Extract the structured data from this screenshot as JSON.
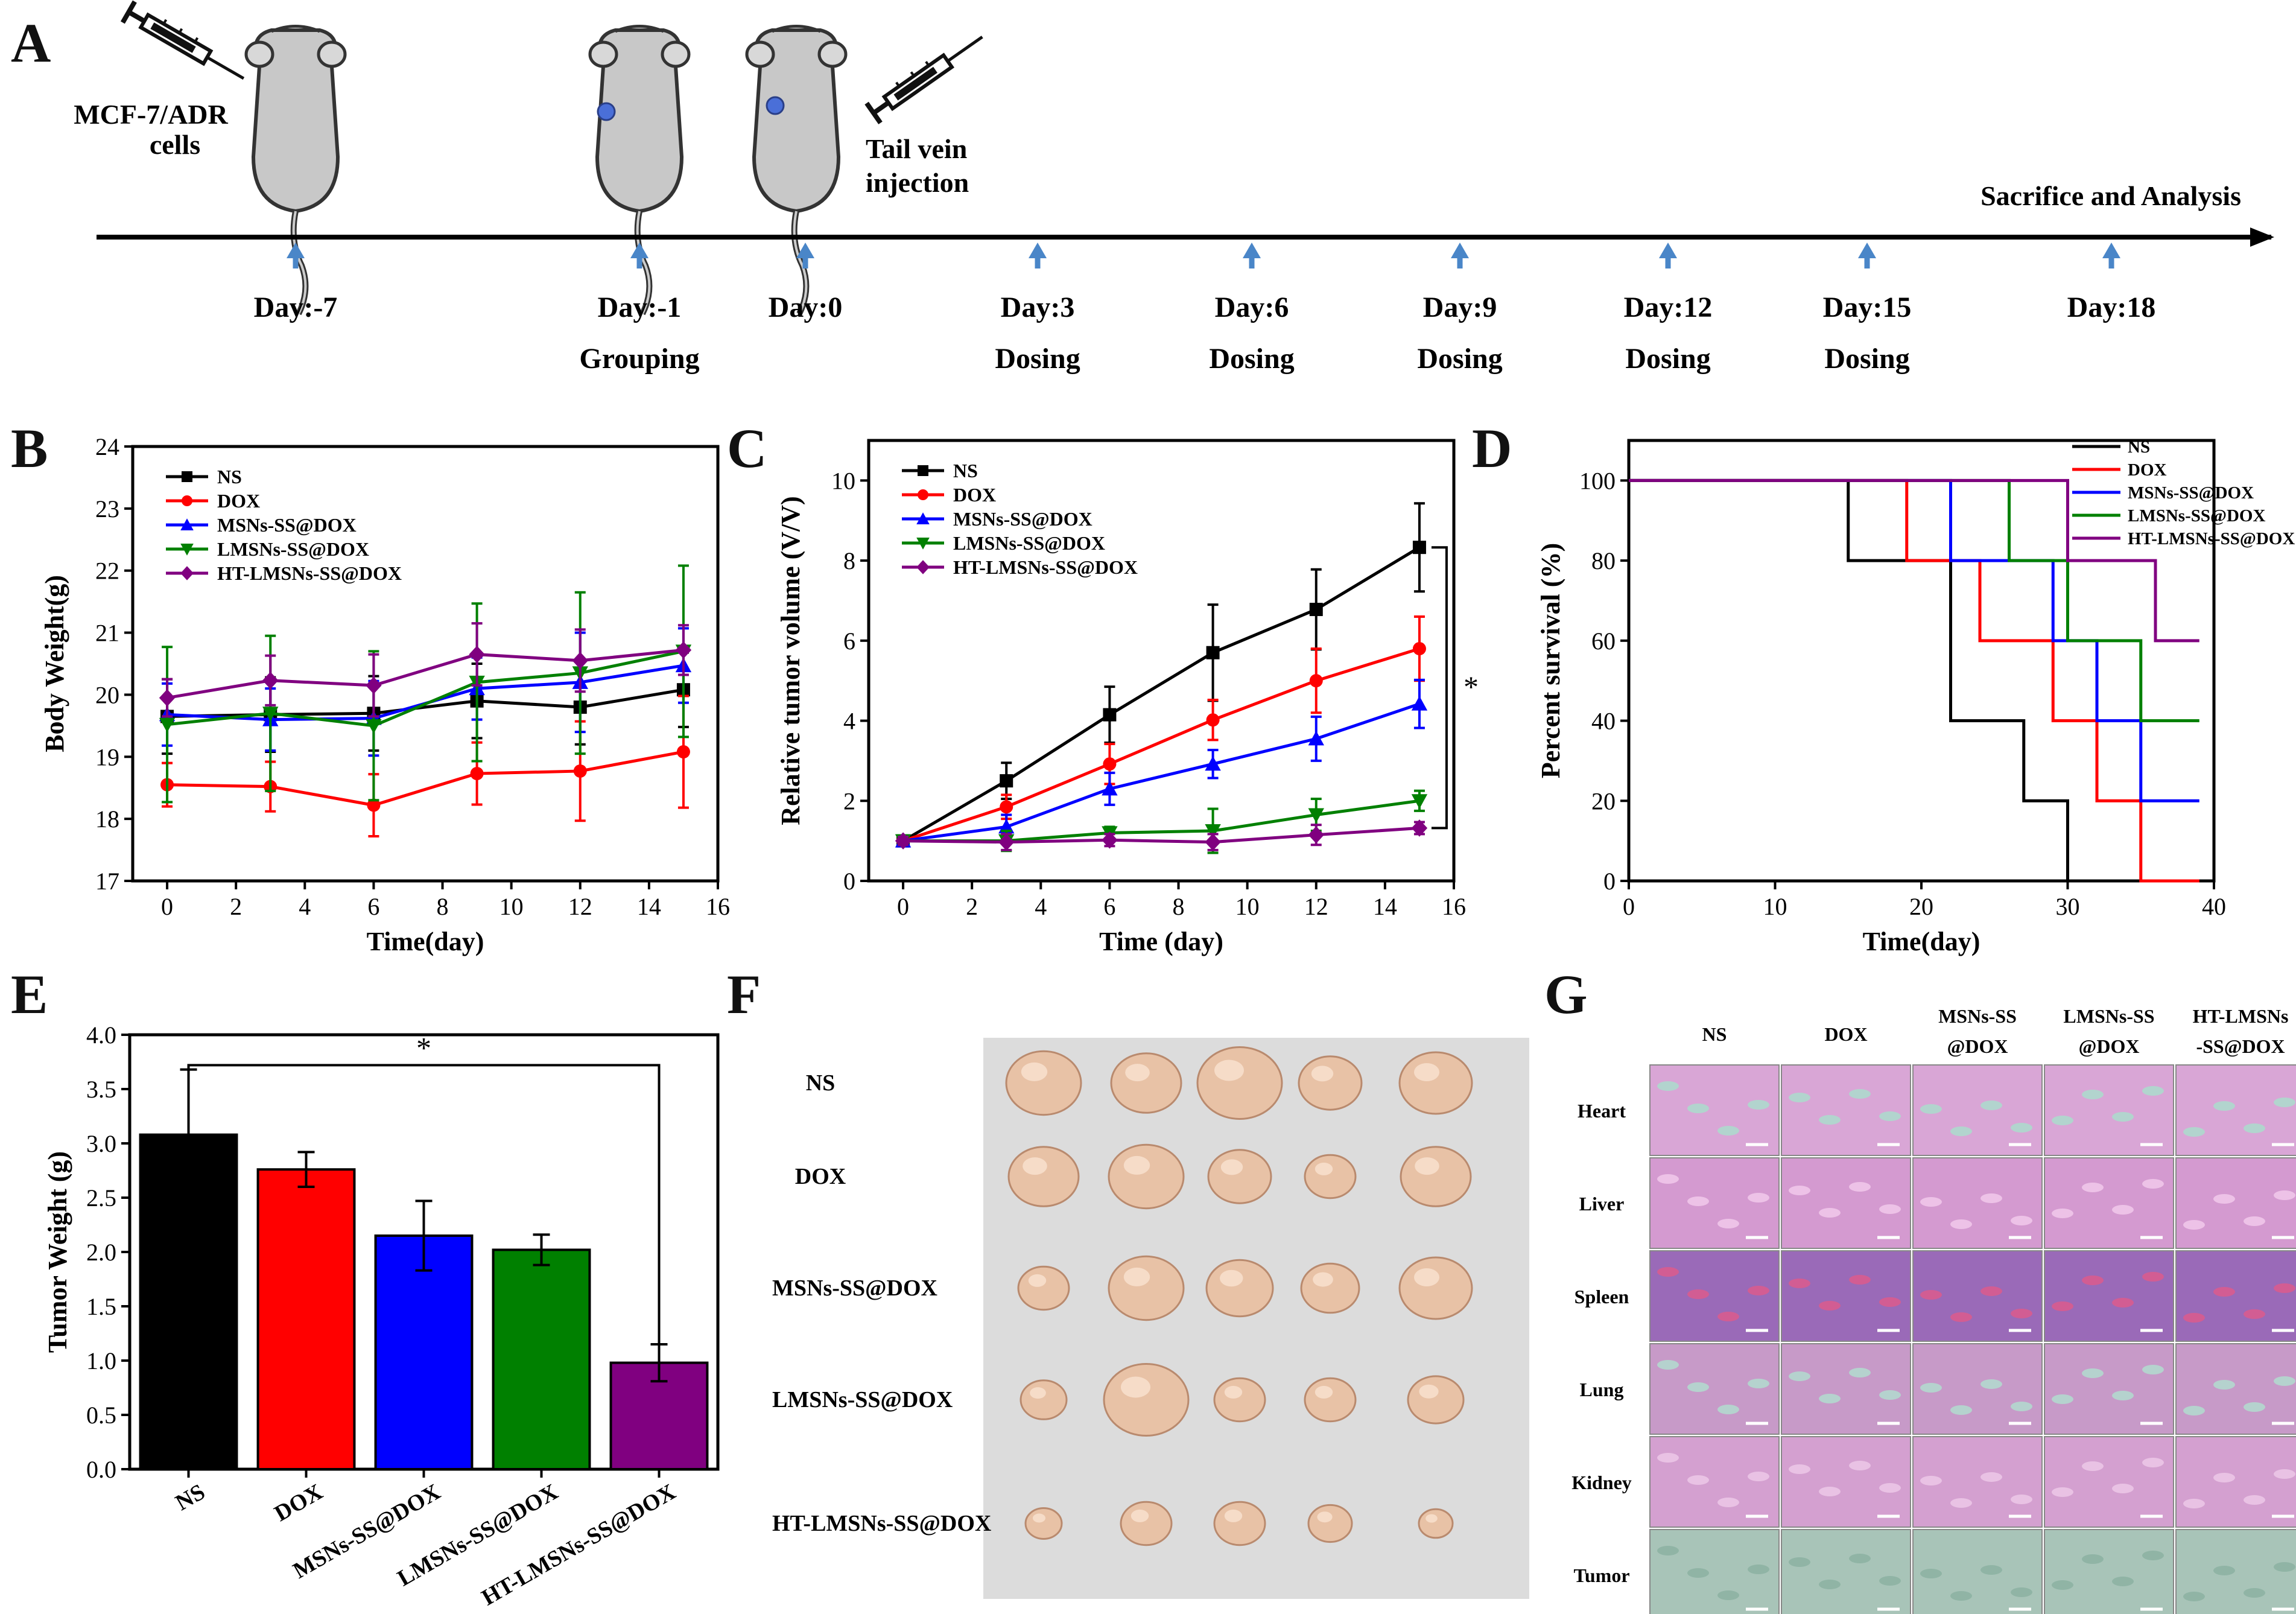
{
  "panel_labels": {
    "a": "A",
    "b": "B",
    "c": "C",
    "d": "D",
    "e": "E",
    "f": "F",
    "g": "G"
  },
  "timeline": {
    "cells_label": [
      "MCF-7/ADR",
      "cells"
    ],
    "injection_label": [
      "Tail vein",
      "injection"
    ],
    "end_label": "Sacrifice and Analysis",
    "days": [
      {
        "day": "Day:-7",
        "note": ""
      },
      {
        "day": "Day:-1",
        "note": "Grouping"
      },
      {
        "day": "Day:0",
        "note": ""
      },
      {
        "day": "Day:3",
        "note": "Dosing"
      },
      {
        "day": "Day:6",
        "note": "Dosing"
      },
      {
        "day": "Day:9",
        "note": "Dosing"
      },
      {
        "day": "Day:12",
        "note": "Dosing"
      },
      {
        "day": "Day:15",
        "note": "Dosing"
      },
      {
        "day": "Day:18",
        "note": ""
      }
    ]
  },
  "colors": {
    "NS": "#000000",
    "DOX": "#ff0000",
    "MSN": "#0000ff",
    "LMSN": "#008000",
    "HT": "#800080",
    "arrow": "#4a86c8"
  },
  "chart_data": [
    {
      "id": "B",
      "type": "line",
      "title": "",
      "xlabel": "Time(day)",
      "ylabel": "Body Weight(g)",
      "xlim": [
        -1,
        16
      ],
      "ylim": [
        17,
        24
      ],
      "xticks": [
        0,
        2,
        4,
        6,
        8,
        10,
        12,
        14,
        16
      ],
      "yticks": [
        17,
        18,
        19,
        20,
        21,
        22,
        23,
        24
      ],
      "x": [
        0,
        3,
        6,
        9,
        12,
        15
      ],
      "series": [
        {
          "name": "NS",
          "marker": "square",
          "values": [
            19.65,
            19.68,
            19.7,
            19.9,
            19.8,
            20.08
          ],
          "err": [
            0.6,
            0.6,
            0.6,
            0.6,
            0.6,
            0.6
          ]
        },
        {
          "name": "DOX",
          "marker": "circle",
          "values": [
            18.55,
            18.52,
            18.22,
            18.73,
            18.77,
            19.08
          ],
          "err": [
            0.35,
            0.4,
            0.5,
            0.5,
            0.8,
            0.9
          ]
        },
        {
          "name": "MSNs-SS@DOX",
          "marker": "triangle-up",
          "values": [
            19.68,
            19.6,
            19.62,
            20.1,
            20.2,
            20.47
          ],
          "err": [
            0.5,
            0.5,
            0.6,
            0.5,
            0.8,
            0.6
          ]
        },
        {
          "name": "LMSNs-SS@DOX",
          "marker": "triangle-down",
          "values": [
            19.52,
            19.7,
            19.5,
            20.2,
            20.35,
            20.7
          ],
          "err": [
            1.25,
            1.25,
            1.2,
            1.27,
            1.3,
            1.38
          ]
        },
        {
          "name": "HT-LMSNs-SS@DOX",
          "marker": "diamond",
          "values": [
            19.95,
            20.23,
            20.15,
            20.65,
            20.55,
            20.72
          ],
          "err": [
            0.3,
            0.4,
            0.5,
            0.5,
            0.5,
            0.4
          ]
        }
      ]
    },
    {
      "id": "C",
      "type": "line",
      "title": "",
      "xlabel": "Time (day)",
      "ylabel": "Relative tumor volume (V/V)",
      "xlim": [
        -1,
        16
      ],
      "ylim": [
        0,
        11
      ],
      "xticks": [
        0,
        2,
        4,
        6,
        8,
        10,
        12,
        14,
        16
      ],
      "yticks": [
        0,
        2,
        4,
        6,
        8,
        10
      ],
      "x": [
        0,
        3,
        6,
        9,
        12,
        15
      ],
      "annotation": "*",
      "series": [
        {
          "name": "NS",
          "marker": "square",
          "values": [
            1.0,
            2.5,
            4.15,
            5.7,
            6.78,
            8.33
          ],
          "err": [
            0.1,
            0.45,
            0.7,
            1.2,
            1.0,
            1.1
          ]
        },
        {
          "name": "DOX",
          "marker": "circle",
          "values": [
            1.0,
            1.85,
            2.92,
            4.02,
            5.0,
            5.8
          ],
          "err": [
            0.1,
            0.3,
            0.5,
            0.5,
            0.8,
            0.8
          ]
        },
        {
          "name": "MSNs-SS@DOX",
          "marker": "triangle-up",
          "values": [
            1.0,
            1.35,
            2.3,
            2.92,
            3.55,
            4.42
          ],
          "err": [
            0.1,
            0.3,
            0.4,
            0.35,
            0.55,
            0.6
          ]
        },
        {
          "name": "LMSNs-SS@DOX",
          "marker": "triangle-down",
          "values": [
            1.0,
            1.0,
            1.2,
            1.25,
            1.65,
            2.0
          ],
          "err": [
            0.1,
            0.25,
            0.15,
            0.55,
            0.4,
            0.25
          ]
        },
        {
          "name": "HT-LMSNs-SS@DOX",
          "marker": "diamond",
          "values": [
            1.0,
            0.97,
            1.02,
            0.97,
            1.15,
            1.32
          ],
          "err": [
            0.1,
            0.2,
            0.15,
            0.2,
            0.25,
            0.15
          ]
        }
      ]
    },
    {
      "id": "D",
      "type": "line",
      "title": "",
      "xlabel": "Time(day)",
      "ylabel": "Percent  survival (%)",
      "xlim": [
        0,
        40
      ],
      "ylim": [
        0,
        110
      ],
      "xticks": [
        0,
        10,
        20,
        30,
        40
      ],
      "yticks": [
        0,
        20,
        40,
        60,
        80,
        100
      ],
      "step": true,
      "series": [
        {
          "name": "NS",
          "x": [
            0,
            15,
            22,
            27,
            30,
            30
          ],
          "values": [
            100,
            80,
            40,
            20,
            0,
            0
          ]
        },
        {
          "name": "DOX",
          "x": [
            0,
            19,
            24,
            29,
            32,
            35,
            39
          ],
          "values": [
            100,
            80,
            60,
            40,
            20,
            0,
            0
          ]
        },
        {
          "name": "MSNs-SS@DOX",
          "x": [
            0,
            22,
            29,
            32,
            35,
            39
          ],
          "values": [
            100,
            80,
            60,
            40,
            20,
            20
          ]
        },
        {
          "name": "LMSNs-SS@DOX",
          "x": [
            0,
            26,
            30,
            35,
            39
          ],
          "values": [
            100,
            80,
            60,
            40,
            40
          ]
        },
        {
          "name": "HT-LMSNs-SS@DOX",
          "x": [
            0,
            30,
            36,
            39
          ],
          "values": [
            100,
            80,
            60,
            60
          ]
        }
      ]
    },
    {
      "id": "E",
      "type": "bar",
      "title": "",
      "xlabel": "",
      "ylabel": "Tumor Weight (g)",
      "ylim": [
        0,
        4.0
      ],
      "yticks": [
        "0.0",
        "0.5",
        "1.0",
        "1.5",
        "2.0",
        "2.5",
        "3.0",
        "3.5",
        "4.0"
      ],
      "categories": [
        "NS",
        "DOX",
        "MSNs-SS@DOX",
        "LMSNs-SS@DOX",
        "HT-LMSNs-SS@DOX"
      ],
      "values": [
        3.08,
        2.76,
        2.15,
        2.02,
        0.98
      ],
      "err": [
        0.6,
        0.16,
        0.32,
        0.14,
        0.17
      ],
      "annotation": "*"
    }
  ],
  "photo_f": {
    "rows": [
      "NS",
      "DOX",
      "MSNs-SS@DOX",
      "LMSNs-SS@DOX",
      "HT-LMSNs-SS@DOX"
    ]
  },
  "histology_g": {
    "cols": [
      [
        "NS",
        ""
      ],
      [
        "DOX",
        ""
      ],
      [
        "MSNs-SS",
        "@DOX"
      ],
      [
        "LMSNs-SS",
        "@DOX"
      ],
      [
        "HT-LMSNs",
        "-SS@DOX"
      ]
    ],
    "rows": [
      "Heart",
      "Liver",
      "Spleen",
      "Lung",
      "Kidney",
      "Tumor"
    ]
  }
}
